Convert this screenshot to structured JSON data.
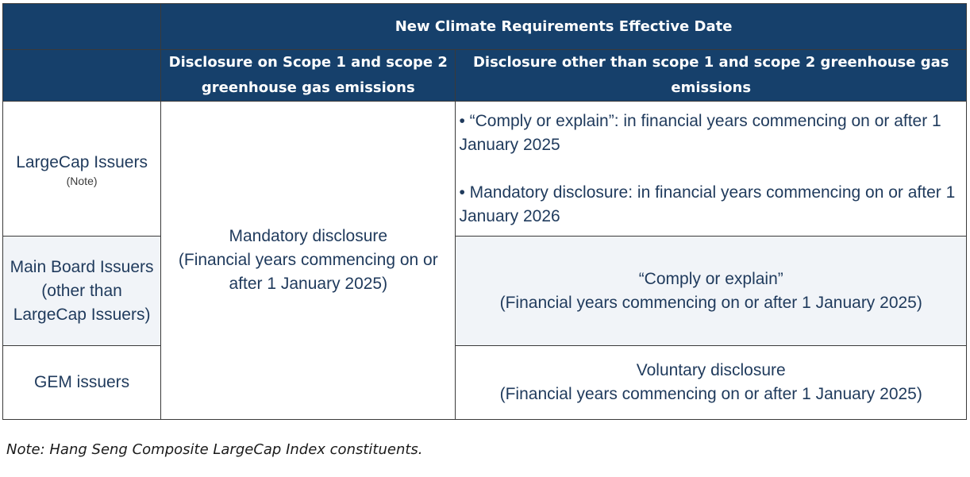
{
  "header": {
    "main_title": "New Climate Requirements Effective Date",
    "col_scope12": "Disclosure on Scope 1 and scope 2 greenhouse gas emissions",
    "col_other": "Disclosure other than scope 1 and scope 2 greenhouse gas emissions"
  },
  "rows": {
    "largecap": {
      "label": "LargeCap Issuers",
      "note": "(Note)",
      "other_bullets": [
        "• “Comply or explain”: in financial years commencing on or after 1 January 2025",
        "• Mandatory disclosure: in financial years commencing on or after 1 January 2026"
      ]
    },
    "mainboard": {
      "label": "Main Board Issuers (other than LargeCap Issuers)",
      "other_line1": "“Comply or explain”",
      "other_line2": "(Financial years commencing on or after 1 January 2025)"
    },
    "gem": {
      "label": "GEM issuers",
      "other_line1": "Voluntary disclosure",
      "other_line2": "(Financial years commencing on or after 1 January 2025)"
    }
  },
  "scope12_merged": {
    "line1": "Mandatory disclosure",
    "line2": "(Financial years commencing on or after 1 January 2025)"
  },
  "footnote": "Note: Hang Seng Composite LargeCap Index constituents.",
  "colors": {
    "header_bg": "#16406b",
    "body_text": "#1f3a5c",
    "shade_bg": "#f1f4f8"
  }
}
